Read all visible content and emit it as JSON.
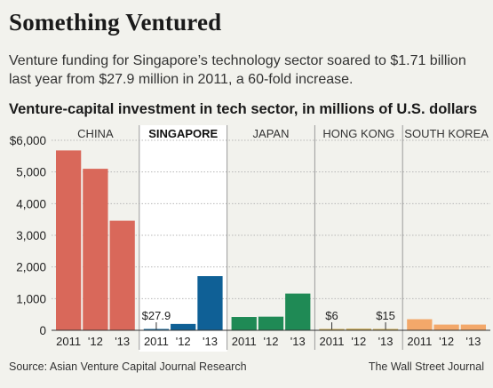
{
  "headline": "Something Ventured",
  "dek": "Venture funding for Singapore’s technology sector soared to $1.71 billion last year from $27.9 million in 2011, a 60-fold increase.",
  "chart_title": "Venture-capital investment in tech sector, in millions of U.S. dollars",
  "source": "Source: Asian Venture Capital Journal Research",
  "credit": "The Wall Street Journal",
  "colors": {
    "background": "#f2f2ed",
    "highlight_panel": "#ffffff",
    "china": "#d9685a",
    "singapore": "#0f6096",
    "japan": "#1f8a55",
    "hong_kong": "#c4a44c",
    "south_korea": "#f3a86a"
  },
  "chart_data": {
    "type": "bar",
    "title": "Venture-capital investment in tech sector, in millions of U.S. dollars",
    "ylim": [
      0,
      6000
    ],
    "yticks": [
      0,
      1000,
      2000,
      3000,
      4000,
      5000,
      6000
    ],
    "ytick_labels": [
      "0",
      "1,000",
      "2,000",
      "3,000",
      "4,000",
      "5,000",
      "$6,000"
    ],
    "grid": true,
    "highlight_panel": "SINGAPORE",
    "panels": [
      {
        "name": "CHINA",
        "categories": [
          "2011",
          "'12",
          "'13"
        ],
        "values": [
          5680,
          5100,
          3460
        ],
        "annotations": []
      },
      {
        "name": "SINGAPORE",
        "categories": [
          "2011",
          "'12",
          "'13"
        ],
        "values": [
          27.9,
          200,
          1710
        ],
        "annotations": [
          {
            "index": 0,
            "label": "$27.9"
          }
        ]
      },
      {
        "name": "JAPAN",
        "categories": [
          "2011",
          "'12",
          "'13"
        ],
        "values": [
          420,
          430,
          1160
        ],
        "annotations": []
      },
      {
        "name": "HONG KONG",
        "categories": [
          "2011",
          "'12",
          "'13"
        ],
        "values": [
          6,
          50,
          15
        ],
        "annotations": [
          {
            "index": 0,
            "label": "$6"
          },
          {
            "index": 2,
            "label": "$15"
          }
        ]
      },
      {
        "name": "SOUTH KOREA",
        "categories": [
          "2011",
          "'12",
          "'13"
        ],
        "values": [
          350,
          180,
          180
        ],
        "annotations": []
      }
    ]
  }
}
